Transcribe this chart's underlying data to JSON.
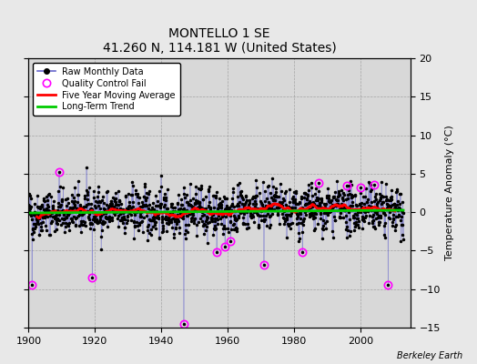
{
  "title": "MONTELLO 1 SE",
  "subtitle": "41.260 N, 114.181 W (United States)",
  "ylabel": "Temperature Anomaly (°C)",
  "credit": "Berkeley Earth",
  "xlim": [
    1900,
    2015
  ],
  "ylim": [
    -15,
    20
  ],
  "yticks": [
    -15,
    -10,
    -5,
    0,
    5,
    10,
    15,
    20
  ],
  "xticks": [
    1900,
    1920,
    1940,
    1960,
    1980,
    2000
  ],
  "fig_bg_color": "#e8e8e8",
  "ax_bg_color": "#d8d8d8",
  "raw_line_color": "#6666cc",
  "raw_marker_color": "#000000",
  "qc_marker_color": "#ff00ff",
  "moving_avg_color": "#ff0000",
  "trend_color": "#00cc00",
  "seed": 42,
  "n_months": 1356,
  "start_year": 1900
}
